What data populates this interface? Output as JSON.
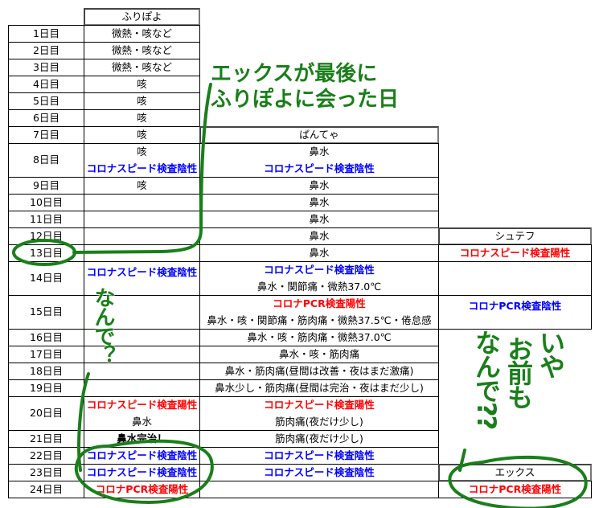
{
  "colors": {
    "blue": "#0000ff",
    "red": "#ff0000",
    "annotation": "#1a7f1a"
  },
  "headers": {
    "furipoyo": "ふりぽよ",
    "pantea": "ぱんてゃ",
    "shutefu": "シュテフ",
    "ekkusu": "エックス"
  },
  "rows": [
    {
      "day": "1日目",
      "f": [
        {
          "t": "微熱・咳など"
        }
      ],
      "p": [],
      "c": []
    },
    {
      "day": "2日目",
      "f": [
        {
          "t": "微熱・咳など"
        }
      ],
      "p": [],
      "c": []
    },
    {
      "day": "3日目",
      "f": [
        {
          "t": "微熱・咳など"
        }
      ],
      "p": [],
      "c": []
    },
    {
      "day": "4日目",
      "f": [
        {
          "t": "咳"
        }
      ],
      "p": [],
      "c": []
    },
    {
      "day": "5日目",
      "f": [
        {
          "t": "咳"
        }
      ],
      "p": [],
      "c": []
    },
    {
      "day": "6日目",
      "f": [
        {
          "t": "咳"
        }
      ],
      "p": [],
      "c": []
    },
    {
      "day": "7日目",
      "f": [
        {
          "t": "咳"
        }
      ],
      "p": [],
      "c": []
    },
    {
      "day": "8日目",
      "f": [
        {
          "t": "咳"
        },
        {
          "t": "コロナスピード検査陰性",
          "s": "blue"
        }
      ],
      "p": [
        {
          "t": "鼻水"
        },
        {
          "t": "コロナスピード検査陰性",
          "s": "blue"
        }
      ],
      "c": []
    },
    {
      "day": "9日目",
      "f": [
        {
          "t": "咳"
        }
      ],
      "p": [
        {
          "t": "鼻水"
        }
      ],
      "c": []
    },
    {
      "day": "10日目",
      "f": [],
      "p": [
        {
          "t": "鼻水"
        }
      ],
      "c": []
    },
    {
      "day": "11日目",
      "f": [],
      "p": [
        {
          "t": "鼻水"
        }
      ],
      "c": []
    },
    {
      "day": "12日目",
      "f": [],
      "p": [
        {
          "t": "鼻水"
        }
      ],
      "c": []
    },
    {
      "day": "13日目",
      "f": [],
      "p": [
        {
          "t": "鼻水"
        }
      ],
      "c": [
        {
          "t": "コロナスピード検査陽性",
          "s": "red"
        }
      ]
    },
    {
      "day": "14日目",
      "f": [
        {
          "t": "コロナスピード検査陰性",
          "s": "blue"
        },
        {
          "t": ""
        }
      ],
      "p": [
        {
          "t": "コロナスピード検査陰性",
          "s": "blue"
        },
        {
          "t": "鼻水・関節痛・微熱37.0℃"
        }
      ],
      "c": []
    },
    {
      "day": "15日目",
      "f": [],
      "p": [
        {
          "t": "コロナPCR検査陽性",
          "s": "red"
        },
        {
          "t": "鼻水・咳・関節痛・筋肉痛・微熱37.5℃・倦怠感"
        }
      ],
      "c": [
        {
          "t": "コロナPCR検査陰性",
          "s": "blue"
        },
        {
          "t": ""
        }
      ]
    },
    {
      "day": "16日目",
      "f": [],
      "p": [
        {
          "t": "鼻水・咳・筋肉痛・微熱37.0℃"
        }
      ],
      "c": []
    },
    {
      "day": "17日目",
      "f": [],
      "p": [
        {
          "t": "鼻水・咳・筋肉痛"
        }
      ],
      "c": []
    },
    {
      "day": "18日目",
      "f": [],
      "p": [
        {
          "t": "鼻水・筋肉痛(昼間は改善・夜はまだ激痛)"
        }
      ],
      "c": []
    },
    {
      "day": "19日目",
      "f": [],
      "p": [
        {
          "t": "鼻水少し・筋肉痛(昼間は完治・夜はまだ少し)"
        }
      ],
      "c": []
    },
    {
      "day": "20日目",
      "f": [
        {
          "t": "コロナスピード検査陽性",
          "s": "red"
        },
        {
          "t": "鼻水"
        }
      ],
      "p": [
        {
          "t": "コロナスピード検査陽性",
          "s": "red"
        },
        {
          "t": "筋肉痛(夜だけ少し)"
        }
      ],
      "c": []
    },
    {
      "day": "21日目",
      "f": [
        {
          "t": "鼻水完治！",
          "s": "bold"
        }
      ],
      "p": [
        {
          "t": "筋肉痛(夜だけ少し)"
        }
      ],
      "c": []
    },
    {
      "day": "22日目",
      "f": [
        {
          "t": "コロナスピード検査陰性",
          "s": "blue"
        }
      ],
      "p": [
        {
          "t": "コロナスピード検査陰性",
          "s": "blue"
        }
      ],
      "c": []
    },
    {
      "day": "23日目",
      "f": [
        {
          "t": "コロナスピード検査陰性",
          "s": "blue"
        }
      ],
      "p": [
        {
          "t": "コロナスピード検査陰性",
          "s": "blue"
        }
      ],
      "c": []
    },
    {
      "day": "24日目",
      "f": [
        {
          "t": "コロナPCR検査陽性",
          "s": "red"
        }
      ],
      "p": [],
      "c": [
        {
          "t": "コロナPCR検査陽性",
          "s": "red"
        }
      ]
    }
  ],
  "annotations": {
    "last_met": [
      "エックスが最後に",
      "ふりぽよに会った日"
    ],
    "why": "なんで？",
    "you_too": [
      "いや",
      "お前も",
      "なんで??"
    ]
  }
}
